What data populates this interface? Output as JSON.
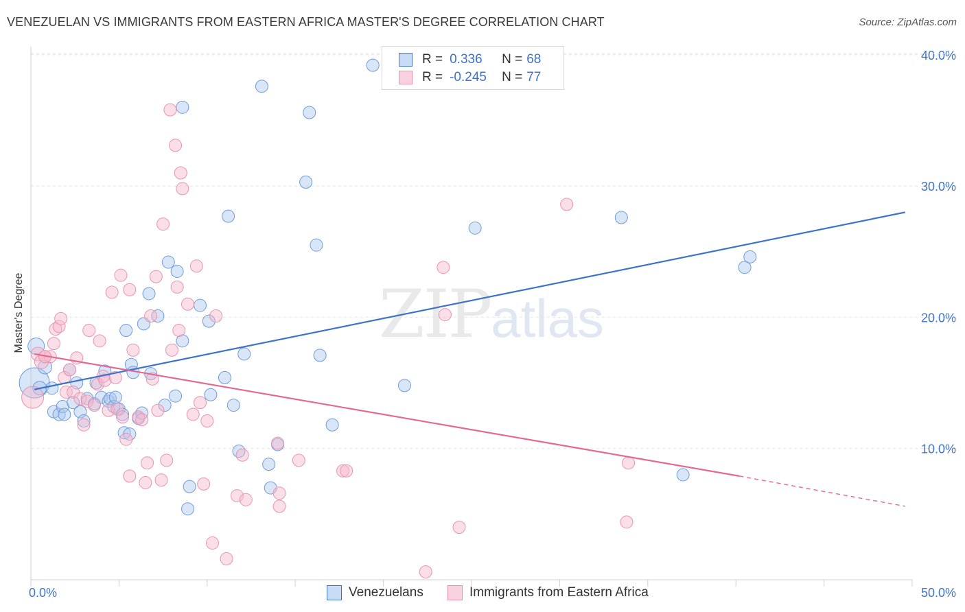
{
  "title": "VENEZUELAN VS IMMIGRANTS FROM EASTERN AFRICA MASTER'S DEGREE CORRELATION CHART",
  "source": "Source: ZipAtlas.com",
  "watermark": {
    "zip": "ZIP",
    "atlas": "atlas"
  },
  "colors": {
    "blue": "#3d73c8",
    "blue_fill": "#aac8f0",
    "pink": "#e36893",
    "pink_fill": "#f6b8cc",
    "grid": "#e4e4e4"
  },
  "legend": {
    "rows": [
      {
        "r_label": "R =",
        "r_value": "0.336",
        "n_label": "N =",
        "n_value": "68"
      },
      {
        "r_label": "R =",
        "r_value": "-0.245",
        "n_label": "N =",
        "n_value": "77"
      }
    ]
  },
  "chart_data": {
    "type": "scatter",
    "ylabel": "Master's Degree",
    "xlim": [
      0,
      50
    ],
    "ylim": [
      0,
      42
    ],
    "x_tick_labels": [
      "0.0%",
      "50.0%"
    ],
    "y_ticks": [
      10,
      20,
      30,
      40
    ],
    "y_tick_labels": [
      "10.0%",
      "20.0%",
      "30.0%",
      "40.0%"
    ],
    "grid": true,
    "legend_position": "top-center",
    "series": [
      {
        "name": "Venezuelans",
        "color": "#3d73c8",
        "trend": {
          "x": [
            0.2,
            49.6
          ],
          "y": [
            14.5,
            28.0
          ],
          "dashed_from": null
        },
        "points": [
          [
            0.2,
            15.0,
            22
          ],
          [
            0.3,
            17.8,
            12
          ],
          [
            0.5,
            14.6,
            10
          ],
          [
            0.8,
            16.2,
            10
          ],
          [
            1.2,
            14.6,
            9
          ],
          [
            1.3,
            12.8,
            9
          ],
          [
            1.6,
            12.6,
            9
          ],
          [
            1.8,
            13.2,
            9
          ],
          [
            1.9,
            12.6,
            9
          ],
          [
            2.2,
            16.0,
            9
          ],
          [
            2.4,
            13.5,
            9
          ],
          [
            2.6,
            15.0,
            9
          ],
          [
            2.8,
            12.8,
            9
          ],
          [
            3.0,
            12.1,
            9
          ],
          [
            3.2,
            13.8,
            9
          ],
          [
            3.6,
            13.4,
            9
          ],
          [
            3.7,
            15.0,
            9
          ],
          [
            4.0,
            13.9,
            9
          ],
          [
            4.2,
            15.9,
            9
          ],
          [
            4.4,
            13.6,
            9
          ],
          [
            4.5,
            13.8,
            9
          ],
          [
            4.7,
            13.2,
            9
          ],
          [
            4.8,
            13.9,
            9
          ],
          [
            5.0,
            13.0,
            9
          ],
          [
            5.2,
            12.6,
            9
          ],
          [
            5.3,
            11.2,
            9
          ],
          [
            5.6,
            11.1,
            9
          ],
          [
            5.4,
            19.0,
            9
          ],
          [
            5.7,
            16.4,
            9
          ],
          [
            5.8,
            15.8,
            9
          ],
          [
            6.1,
            12.3,
            9
          ],
          [
            6.3,
            12.7,
            9
          ],
          [
            6.4,
            19.5,
            9
          ],
          [
            6.7,
            21.8,
            9
          ],
          [
            6.8,
            15.7,
            9
          ],
          [
            7.2,
            20.1,
            9
          ],
          [
            7.6,
            13.3,
            9
          ],
          [
            7.8,
            24.2,
            9
          ],
          [
            8.2,
            14.0,
            9
          ],
          [
            8.3,
            23.5,
            9
          ],
          [
            8.6,
            18.2,
            9
          ],
          [
            8.6,
            36.0,
            9
          ],
          [
            9.0,
            7.1,
            9
          ],
          [
            8.9,
            5.4,
            9
          ],
          [
            9.6,
            20.9,
            9
          ],
          [
            10.1,
            19.7,
            9
          ],
          [
            10.2,
            14.1,
            9
          ],
          [
            11.0,
            15.4,
            9
          ],
          [
            11.2,
            27.7,
            9
          ],
          [
            11.5,
            13.3,
            9
          ],
          [
            11.8,
            9.8,
            9
          ],
          [
            12.1,
            17.2,
            9
          ],
          [
            13.1,
            37.6,
            9
          ],
          [
            13.5,
            8.8,
            9
          ],
          [
            13.6,
            7.0,
            9
          ],
          [
            14.0,
            10.3,
            9
          ],
          [
            15.6,
            30.3,
            9
          ],
          [
            15.8,
            35.6,
            9
          ],
          [
            16.2,
            25.5,
            9
          ],
          [
            16.4,
            17.1,
            9
          ],
          [
            17.1,
            11.8,
            9
          ],
          [
            19.4,
            39.2,
            9
          ],
          [
            21.2,
            14.8,
            9
          ],
          [
            25.2,
            26.8,
            9
          ],
          [
            33.5,
            27.6,
            9
          ],
          [
            37.0,
            8.0,
            9
          ],
          [
            40.5,
            23.8,
            9
          ],
          [
            40.8,
            24.6,
            9
          ]
        ]
      },
      {
        "name": "Immigrants from Eastern Africa",
        "color": "#e36893",
        "trend": {
          "x": [
            0.2,
            40.2
          ],
          "y": [
            17.2,
            7.9
          ],
          "dashed_to": [
            49.6,
            5.6
          ]
        },
        "points": [
          [
            0.1,
            13.9,
            16
          ],
          [
            0.4,
            17.2,
            10
          ],
          [
            0.6,
            16.6,
            10
          ],
          [
            0.8,
            17.0,
            9
          ],
          [
            1.1,
            17.0,
            9
          ],
          [
            1.3,
            18.0,
            9
          ],
          [
            1.4,
            19.1,
            9
          ],
          [
            1.6,
            19.3,
            9
          ],
          [
            1.7,
            19.9,
            9
          ],
          [
            1.9,
            15.4,
            9
          ],
          [
            2.0,
            14.3,
            9
          ],
          [
            2.2,
            16.0,
            9
          ],
          [
            2.4,
            14.3,
            9
          ],
          [
            2.6,
            16.9,
            9
          ],
          [
            2.8,
            13.8,
            9
          ],
          [
            3.0,
            11.8,
            9
          ],
          [
            3.2,
            13.6,
            9
          ],
          [
            3.3,
            19.0,
            9
          ],
          [
            3.6,
            13.3,
            9
          ],
          [
            3.8,
            14.9,
            9
          ],
          [
            3.9,
            18.2,
            9
          ],
          [
            4.1,
            15.5,
            9
          ],
          [
            4.2,
            15.2,
            9
          ],
          [
            4.4,
            12.9,
            9
          ],
          [
            4.6,
            21.9,
            9
          ],
          [
            4.8,
            15.4,
            9
          ],
          [
            4.9,
            13.0,
            9
          ],
          [
            5.1,
            23.2,
            9
          ],
          [
            5.2,
            12.4,
            9
          ],
          [
            5.4,
            10.7,
            9
          ],
          [
            5.6,
            22.1,
            9
          ],
          [
            5.6,
            7.9,
            9
          ],
          [
            5.8,
            17.5,
            9
          ],
          [
            6.1,
            12.4,
            9
          ],
          [
            6.3,
            12.2,
            9
          ],
          [
            6.5,
            7.4,
            9
          ],
          [
            6.6,
            8.9,
            9
          ],
          [
            6.8,
            20.1,
            9
          ],
          [
            6.9,
            15.3,
            9
          ],
          [
            7.1,
            23.1,
            9
          ],
          [
            7.2,
            12.9,
            9
          ],
          [
            7.4,
            7.6,
            9
          ],
          [
            7.5,
            27.1,
            9
          ],
          [
            7.7,
            9.1,
            9
          ],
          [
            7.9,
            35.8,
            9
          ],
          [
            8.0,
            17.5,
            9
          ],
          [
            8.2,
            33.1,
            9
          ],
          [
            8.3,
            22.3,
            9
          ],
          [
            8.4,
            19.0,
            9
          ],
          [
            8.5,
            31.0,
            9
          ],
          [
            8.6,
            29.8,
            9
          ],
          [
            8.9,
            21.0,
            9
          ],
          [
            9.2,
            12.6,
            9
          ],
          [
            9.4,
            23.9,
            9
          ],
          [
            9.6,
            13.5,
            9
          ],
          [
            9.8,
            7.3,
            9
          ],
          [
            10.0,
            12.1,
            9
          ],
          [
            10.3,
            2.8,
            9
          ],
          [
            10.5,
            20.1,
            9
          ],
          [
            11.1,
            1.6,
            9
          ],
          [
            11.7,
            6.4,
            9
          ],
          [
            12.0,
            9.5,
            9
          ],
          [
            12.2,
            6.1,
            9
          ],
          [
            14.0,
            10.4,
            9
          ],
          [
            14.1,
            6.6,
            9
          ],
          [
            14.1,
            5.6,
            9
          ],
          [
            15.2,
            9.1,
            9
          ],
          [
            17.7,
            8.3,
            9
          ],
          [
            17.9,
            8.3,
            9
          ],
          [
            22.4,
            0.6,
            9
          ],
          [
            23.4,
            23.8,
            9
          ],
          [
            23.5,
            20.2,
            9
          ],
          [
            24.3,
            4.0,
            9
          ],
          [
            30.4,
            28.6,
            9
          ],
          [
            33.8,
            4.4,
            9
          ],
          [
            33.9,
            8.9,
            9
          ],
          [
            0.8,
            17.0,
            9
          ]
        ]
      }
    ]
  }
}
